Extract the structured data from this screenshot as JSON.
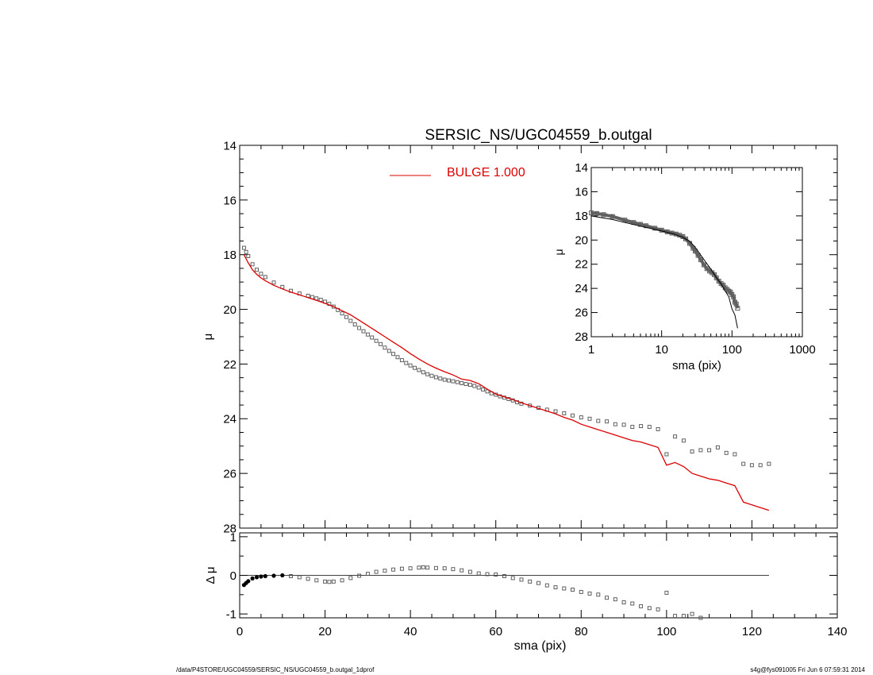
{
  "footer": {
    "path": "/data/P4STORE/UGC04559/SERSIC_NS/UGC04559_b.outgal_1dprof",
    "stamp": "s4g@fys091005  Fri Jun  6 07:59:31 2014"
  },
  "chart_data": [
    {
      "panel": "main",
      "type": "scatter",
      "title": "SERSIC_NS/UGC04559_b.outgal",
      "xlabel": "",
      "ylabel": "μ",
      "xlim": [
        0,
        140
      ],
      "ylim": [
        28,
        14
      ],
      "xticks": [
        0,
        20,
        40,
        60,
        80,
        100,
        120,
        140
      ],
      "yticks": [
        14,
        16,
        18,
        20,
        22,
        24,
        26,
        28
      ],
      "legend": {
        "label": "BULGE  1.000",
        "color": "#dd0000",
        "position": "top-center"
      },
      "series": [
        {
          "name": "BULGE  1.000",
          "style": "line",
          "color": "#dd0000",
          "x": [
            1,
            1.5,
            2,
            3,
            4,
            5,
            6,
            8,
            10,
            12,
            14,
            16,
            18,
            20,
            22,
            24,
            26,
            28,
            30,
            32,
            34,
            36,
            38,
            40,
            42,
            44,
            46,
            48,
            50,
            52,
            54,
            56,
            58,
            60,
            62,
            64,
            66,
            68,
            70,
            72,
            74,
            76,
            78,
            80,
            82,
            84,
            86,
            88,
            90,
            92,
            94,
            96,
            98,
            100,
            102,
            104,
            106,
            108,
            110,
            112,
            114,
            116,
            118,
            120,
            122,
            124
          ],
          "y": [
            18.0,
            18.15,
            18.3,
            18.55,
            18.72,
            18.85,
            18.95,
            19.12,
            19.25,
            19.37,
            19.47,
            19.57,
            19.67,
            19.78,
            19.9,
            20.05,
            20.2,
            20.4,
            20.6,
            20.8,
            21.0,
            21.2,
            21.4,
            21.62,
            21.82,
            22.0,
            22.15,
            22.28,
            22.4,
            22.55,
            22.6,
            22.72,
            22.92,
            23.1,
            23.2,
            23.3,
            23.42,
            23.52,
            23.62,
            23.72,
            23.82,
            23.95,
            24.05,
            24.2,
            24.3,
            24.4,
            24.5,
            24.6,
            24.7,
            24.8,
            24.85,
            24.95,
            25.05,
            25.7,
            25.6,
            25.75,
            26.0,
            26.1,
            26.2,
            26.25,
            26.35,
            26.45,
            27.05,
            27.15,
            27.25,
            27.35
          ]
        },
        {
          "name": "",
          "style": "open-square-markers",
          "color": "#505050",
          "x": [
            1,
            1.5,
            2,
            3,
            4,
            5,
            6,
            8,
            10,
            12,
            14,
            16,
            17,
            18,
            19,
            20,
            21,
            22,
            23,
            24,
            25,
            26,
            27,
            28,
            29,
            30,
            31,
            32,
            33,
            34,
            35,
            36,
            37,
            38,
            39,
            40,
            41,
            42,
            43,
            44,
            45,
            46,
            47,
            48,
            49,
            50,
            51,
            52,
            53,
            54,
            55,
            56,
            57,
            58,
            59,
            60,
            61,
            62,
            63,
            64,
            65,
            66,
            68,
            70,
            72,
            74,
            76,
            78,
            80,
            82,
            84,
            86,
            88,
            90,
            92,
            94,
            96,
            98,
            100,
            102,
            104,
            106,
            108,
            110,
            112,
            114,
            116,
            118,
            120,
            122,
            124
          ],
          "y": [
            17.75,
            17.9,
            18.05,
            18.35,
            18.55,
            18.7,
            18.82,
            19.02,
            19.18,
            19.32,
            19.42,
            19.5,
            19.55,
            19.6,
            19.65,
            19.72,
            19.8,
            19.9,
            20.02,
            20.15,
            20.28,
            20.42,
            20.55,
            20.68,
            20.8,
            20.92,
            21.03,
            21.15,
            21.27,
            21.4,
            21.52,
            21.63,
            21.75,
            21.86,
            21.96,
            22.05,
            22.14,
            22.22,
            22.3,
            22.37,
            22.43,
            22.48,
            22.53,
            22.57,
            22.6,
            22.63,
            22.66,
            22.7,
            22.73,
            22.76,
            22.8,
            22.86,
            22.93,
            23.0,
            23.07,
            23.12,
            23.18,
            23.23,
            23.28,
            23.33,
            23.4,
            23.45,
            23.52,
            23.6,
            23.67,
            23.73,
            23.8,
            23.88,
            23.95,
            24.0,
            24.08,
            24.1,
            24.2,
            24.22,
            24.3,
            24.27,
            24.3,
            24.38,
            25.3,
            24.65,
            24.8,
            25.2,
            25.15,
            25.15,
            25.05,
            25.25,
            25.3,
            25.65,
            25.7,
            25.7,
            25.65
          ]
        }
      ]
    },
    {
      "panel": "inset",
      "type": "scatter",
      "xlabel": "sma (pix)",
      "ylabel": "μ",
      "xscale": "log",
      "xlim": [
        1,
        1000
      ],
      "ylim": [
        28,
        14
      ],
      "xticks": [
        1,
        10,
        100,
        1000
      ],
      "yticks": [
        14,
        16,
        18,
        20,
        22,
        24,
        26,
        28
      ],
      "series": [
        {
          "name": "",
          "style": "line",
          "color": "#000000",
          "x": [
            1,
            2,
            3,
            5,
            8,
            10,
            15,
            20,
            25,
            30,
            40,
            50,
            60,
            70,
            80,
            90,
            100,
            110,
            120
          ],
          "y": [
            18.0,
            18.3,
            18.55,
            18.85,
            19.12,
            19.25,
            19.5,
            19.78,
            20.1,
            20.6,
            21.62,
            22.4,
            23.1,
            23.62,
            24.2,
            24.7,
            25.7,
            26.2,
            27.3
          ]
        },
        {
          "name": "",
          "style": "open-square-markers",
          "color": "#505050",
          "x": [
            1,
            1.2,
            1.5,
            2,
            3,
            4,
            5,
            6,
            8,
            10,
            12,
            14,
            16,
            18,
            20,
            22,
            25,
            28,
            30,
            33,
            36,
            40,
            44,
            48,
            52,
            56,
            60,
            65,
            70,
            75,
            80,
            85,
            90,
            95,
            100,
            105,
            110,
            115,
            120
          ],
          "y": [
            17.75,
            17.8,
            17.9,
            18.05,
            18.35,
            18.55,
            18.7,
            18.82,
            19.02,
            19.18,
            19.32,
            19.42,
            19.5,
            19.6,
            19.72,
            19.9,
            20.28,
            20.68,
            20.92,
            21.27,
            21.63,
            22.05,
            22.37,
            22.57,
            22.7,
            22.86,
            23.12,
            23.4,
            23.6,
            23.73,
            23.95,
            24.08,
            24.22,
            24.3,
            24.5,
            24.7,
            25.15,
            25.3,
            25.65
          ]
        }
      ]
    },
    {
      "panel": "residual",
      "type": "scatter",
      "xlabel": "sma (pix)",
      "ylabel": "Δ μ",
      "xlim": [
        0,
        140
      ],
      "ylim": [
        -1.1,
        1.1
      ],
      "xticks": [
        0,
        20,
        40,
        60,
        80,
        100,
        120,
        140
      ],
      "yticks": [
        -1,
        0,
        1
      ],
      "zero_line": [
        0,
        124
      ],
      "series": [
        {
          "name": "",
          "style": "open-square-markers",
          "color": "#505050",
          "x": [
            1,
            1.5,
            2,
            3,
            4,
            5,
            6,
            8,
            10,
            12,
            14,
            16,
            18,
            20,
            21,
            22,
            24,
            26,
            28,
            30,
            32,
            34,
            36,
            38,
            40,
            42,
            43,
            44,
            46,
            48,
            50,
            52,
            54,
            56,
            58,
            60,
            62,
            64,
            66,
            68,
            70,
            72,
            74,
            76,
            78,
            80,
            82,
            84,
            86,
            88,
            90,
            92,
            94,
            96,
            98,
            100,
            102,
            104,
            106,
            108
          ],
          "y": [
            -0.25,
            -0.2,
            -0.15,
            -0.08,
            -0.05,
            -0.03,
            -0.02,
            -0.01,
            0.0,
            -0.02,
            -0.05,
            -0.09,
            -0.13,
            -0.16,
            -0.17,
            -0.16,
            -0.13,
            -0.07,
            -0.01,
            0.04,
            0.09,
            0.12,
            0.15,
            0.17,
            0.18,
            0.2,
            0.21,
            0.2,
            0.19,
            0.18,
            0.16,
            0.13,
            0.09,
            0.05,
            0.03,
            0.02,
            -0.02,
            -0.07,
            -0.11,
            -0.16,
            -0.2,
            -0.26,
            -0.31,
            -0.34,
            -0.37,
            -0.43,
            -0.47,
            -0.5,
            -0.58,
            -0.62,
            -0.7,
            -0.73,
            -0.8,
            -0.85,
            -0.88,
            -0.45,
            -1.05,
            -1.05,
            -1.0,
            -1.1
          ]
        }
      ]
    }
  ]
}
